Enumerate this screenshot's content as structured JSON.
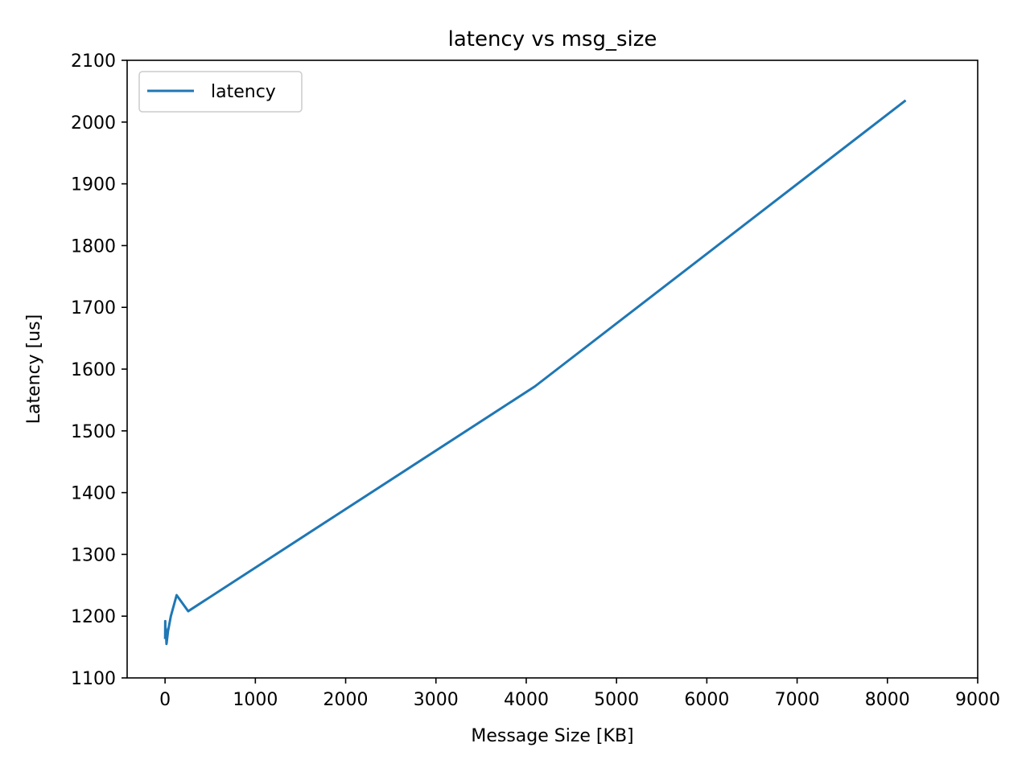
{
  "chart_data": {
    "type": "line",
    "title": "latency vs msg_size",
    "xlabel": "Message Size [KB]",
    "ylabel": "Latency [us]",
    "xlim": [
      -420,
      9000
    ],
    "ylim": [
      1100,
      2100
    ],
    "xticks": [
      0,
      1000,
      2000,
      3000,
      4000,
      5000,
      6000,
      7000,
      8000,
      9000
    ],
    "yticks": [
      1100,
      1200,
      1300,
      1400,
      1500,
      1600,
      1700,
      1800,
      1900,
      2000,
      2100
    ],
    "grid": false,
    "legend_position": "upper-left",
    "series": [
      {
        "name": "latency",
        "color": "#1f77b4",
        "x": [
          1,
          2,
          4,
          8,
          16,
          32,
          64,
          128,
          256,
          4096,
          8192
        ],
        "y": [
          1165,
          1192,
          1170,
          1180,
          1155,
          1175,
          1200,
          1234,
          1208,
          1572,
          2034
        ]
      }
    ]
  }
}
